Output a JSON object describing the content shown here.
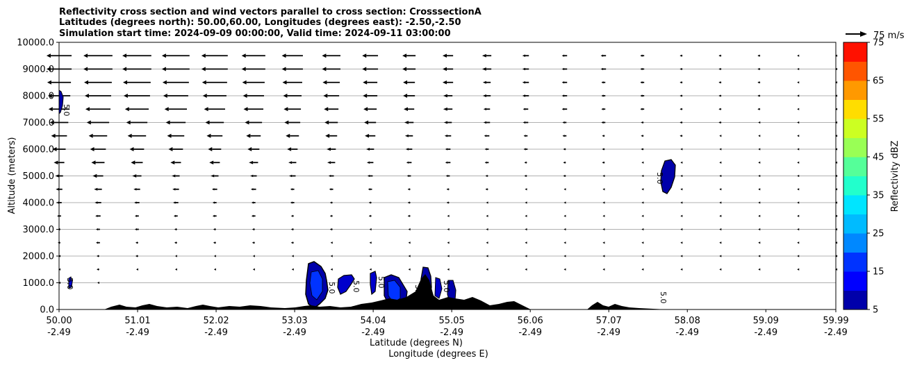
{
  "title_lines": [
    "Reflectivity cross section and wind vectors parallel to cross section: CrosssectionA",
    "Latitudes (degrees north): 50.00,60.00, Longitudes (degrees east): -2.50,-2.50",
    "Simulation start time: 2024-09-09 00:00:00, Valid time: 2024-09-11 03:00:00"
  ],
  "chart_data": {
    "type": "heatmap",
    "title": "Reflectivity cross section and wind vectors parallel to cross section: CrosssectionA",
    "ylabel": "Altitude (meters)",
    "xlabel": "Latitude (degrees N)",
    "xlabel2": "Longitude (degrees E)",
    "xlim": [
      50.0,
      59.99
    ],
    "ylim": [
      0,
      10000
    ],
    "grid": "horizontal",
    "x_ticks": [
      {
        "value": 50.0,
        "lat": "50.00",
        "lon": "-2.49"
      },
      {
        "value": 51.01,
        "lat": "51.01",
        "lon": "-2.49"
      },
      {
        "value": 52.02,
        "lat": "52.02",
        "lon": "-2.49"
      },
      {
        "value": 53.03,
        "lat": "53.03",
        "lon": "-2.49"
      },
      {
        "value": 54.04,
        "lat": "54.04",
        "lon": "-2.49"
      },
      {
        "value": 55.05,
        "lat": "55.05",
        "lon": "-2.49"
      },
      {
        "value": 56.06,
        "lat": "56.06",
        "lon": "-2.49"
      },
      {
        "value": 57.07,
        "lat": "57.07",
        "lon": "-2.49"
      },
      {
        "value": 58.08,
        "lat": "58.08",
        "lon": "-2.49"
      },
      {
        "value": 59.09,
        "lat": "59.09",
        "lon": "-2.49"
      },
      {
        "value": 59.99,
        "lat": "59.99",
        "lon": "-2.49"
      }
    ],
    "y_ticks": [
      {
        "value": 0,
        "label": "0.0"
      },
      {
        "value": 1000,
        "label": "1000.0"
      },
      {
        "value": 2000,
        "label": "2000.0"
      },
      {
        "value": 3000,
        "label": "3000.0"
      },
      {
        "value": 4000,
        "label": "4000.0"
      },
      {
        "value": 5000,
        "label": "5000.0"
      },
      {
        "value": 6000,
        "label": "6000.0"
      },
      {
        "value": 7000,
        "label": "7000.0"
      },
      {
        "value": 8000,
        "label": "8000.0"
      },
      {
        "value": 9000,
        "label": "9000.0"
      },
      {
        "value": 10000,
        "label": "10000.0"
      }
    ],
    "colorbar": {
      "label": "Reflectivity dBZ",
      "levels": [
        5,
        10,
        15,
        20,
        25,
        30,
        35,
        40,
        45,
        50,
        55,
        60,
        65,
        70,
        75
      ],
      "colors": [
        "#0000aa",
        "#0000ff",
        "#0033ff",
        "#0088ff",
        "#00bbff",
        "#00e5ff",
        "#22ffcc",
        "#55ff99",
        "#99ff55",
        "#ccff22",
        "#ffdd00",
        "#ff9900",
        "#ff5500",
        "#ff1100",
        "#aa0000"
      ],
      "tick_labels": [
        "5",
        "15",
        "25",
        "35",
        "45",
        "55",
        "65",
        "75"
      ]
    },
    "quiver_key": {
      "label": "75 m/s",
      "speed": 75
    },
    "wind_rows": [
      {
        "alt": 500,
        "u": [
          0,
          0,
          0,
          0,
          0,
          0,
          0,
          0,
          0,
          0,
          0,
          0,
          0,
          0,
          0,
          0,
          0,
          0,
          0,
          0,
          0
        ]
      },
      {
        "alt": 1000,
        "u": [
          -1,
          -1,
          0,
          0,
          0,
          0,
          0,
          0,
          0,
          0,
          0,
          0,
          0,
          0,
          0,
          0,
          0,
          0,
          0,
          0,
          0
        ]
      },
      {
        "alt": 1500,
        "u": [
          -1,
          -2,
          -1,
          -1,
          -1,
          -1,
          -1,
          -1,
          -1,
          -1,
          -1,
          -1,
          -1,
          -1,
          -1,
          -1,
          -1,
          -1,
          -1,
          -1,
          -1
        ]
      },
      {
        "alt": 2000,
        "u": [
          -1,
          -2,
          -2,
          -1,
          -1,
          -1,
          -1,
          -1,
          -1,
          -1,
          -1,
          -1,
          -1,
          -1,
          -1,
          -1,
          -1,
          -1,
          -1,
          -1,
          -1
        ]
      },
      {
        "alt": 2500,
        "u": [
          -2,
          -3,
          -2,
          -2,
          -2,
          -2,
          -2,
          -1,
          -1,
          -1,
          -1,
          -1,
          -1,
          -1,
          -1,
          -1,
          -1,
          -1,
          -1,
          -1,
          -1
        ]
      },
      {
        "alt": 3000,
        "u": [
          -2,
          -3,
          -3,
          -2,
          -2,
          -2,
          -2,
          -2,
          -1,
          -1,
          -1,
          -1,
          -1,
          -1,
          -1,
          -1,
          -1,
          -1,
          -1,
          -1,
          -1
        ]
      },
      {
        "alt": 3500,
        "u": [
          -3,
          -4,
          -3,
          -3,
          -3,
          -3,
          -2,
          -2,
          -2,
          -2,
          -1,
          -1,
          -1,
          -1,
          -1,
          -1,
          -1,
          -1,
          -1,
          -1,
          -1
        ]
      },
      {
        "alt": 4000,
        "u": [
          -4,
          -5,
          -4,
          -4,
          -3,
          -3,
          -3,
          -2,
          -2,
          -2,
          -2,
          -1,
          -1,
          -1,
          -1,
          -1,
          -1,
          -1,
          -1,
          -1,
          -1
        ]
      },
      {
        "alt": 4500,
        "u": [
          -5,
          -6,
          -5,
          -5,
          -4,
          -4,
          -3,
          -3,
          -3,
          -2,
          -2,
          -2,
          -1,
          -1,
          -1,
          -1,
          -1,
          -1,
          -1,
          -1,
          -1
        ]
      },
      {
        "alt": 5000,
        "u": [
          -6,
          -8,
          -7,
          -6,
          -6,
          -5,
          -5,
          -4,
          -4,
          -3,
          -3,
          -2,
          -2,
          -2,
          -1,
          -1,
          -1,
          -1,
          -1,
          -1,
          -1
        ]
      },
      {
        "alt": 5500,
        "u": [
          -8,
          -10,
          -9,
          -8,
          -8,
          -7,
          -6,
          -6,
          -5,
          -4,
          -4,
          -3,
          -2,
          -2,
          -2,
          -1,
          -1,
          -1,
          -1,
          -1,
          -1
        ]
      },
      {
        "alt": 6000,
        "u": [
          -10,
          -12,
          -11,
          -11,
          -10,
          -9,
          -8,
          -7,
          -6,
          -5,
          -4,
          -3,
          -3,
          -2,
          -2,
          -2,
          -1,
          -1,
          -1,
          -1,
          -1
        ]
      },
      {
        "alt": 6500,
        "u": [
          -12,
          -14,
          -14,
          -13,
          -12,
          -11,
          -10,
          -9,
          -8,
          -6,
          -5,
          -4,
          -3,
          -3,
          -2,
          -2,
          -2,
          -1,
          -1,
          -1,
          -1
        ]
      },
      {
        "alt": 7000,
        "u": [
          -14,
          -17,
          -16,
          -15,
          -14,
          -13,
          -12,
          -10,
          -9,
          -7,
          -6,
          -5,
          -4,
          -3,
          -3,
          -2,
          -2,
          -2,
          -1,
          -1,
          -1
        ]
      },
      {
        "alt": 7500,
        "u": [
          -16,
          -19,
          -18,
          -17,
          -16,
          -15,
          -13,
          -11,
          -10,
          -8,
          -7,
          -5,
          -4,
          -4,
          -3,
          -3,
          -2,
          -2,
          -2,
          -1,
          -1
        ]
      },
      {
        "alt": 8000,
        "u": [
          -17,
          -20,
          -20,
          -19,
          -18,
          -16,
          -14,
          -12,
          -11,
          -9,
          -7,
          -6,
          -5,
          -4,
          -3,
          -3,
          -2,
          -2,
          -2,
          -1,
          -1
        ]
      },
      {
        "alt": 8500,
        "u": [
          -18,
          -21,
          -21,
          -20,
          -19,
          -17,
          -15,
          -13,
          -11,
          -9,
          -8,
          -6,
          -5,
          -4,
          -3,
          -3,
          -2,
          -2,
          -2,
          -1,
          -1
        ]
      },
      {
        "alt": 9000,
        "u": [
          -19,
          -22,
          -22,
          -21,
          -20,
          -18,
          -16,
          -14,
          -12,
          -10,
          -8,
          -7,
          -5,
          -4,
          -4,
          -3,
          -2,
          -2,
          -2,
          -1,
          -1
        ]
      },
      {
        "alt": 9500,
        "u": [
          -19,
          -22,
          -22,
          -21,
          -20,
          -18,
          -16,
          -14,
          -12,
          -10,
          -8,
          -7,
          -5,
          -4,
          -4,
          -3,
          -2,
          -2,
          -2,
          -1,
          -1
        ]
      }
    ],
    "wind_x": [
      50.0,
      50.5,
      51.0,
      51.5,
      52.0,
      52.5,
      53.0,
      53.5,
      54.0,
      54.5,
      55.0,
      55.5,
      56.0,
      56.5,
      57.0,
      57.5,
      58.0,
      58.5,
      59.0,
      59.5,
      59.99
    ],
    "contour_labels": [
      "5.0",
      "5.0",
      "5.0",
      "5.0",
      "5.0",
      "5.0",
      "5.0",
      "5.0",
      "5.0"
    ]
  }
}
